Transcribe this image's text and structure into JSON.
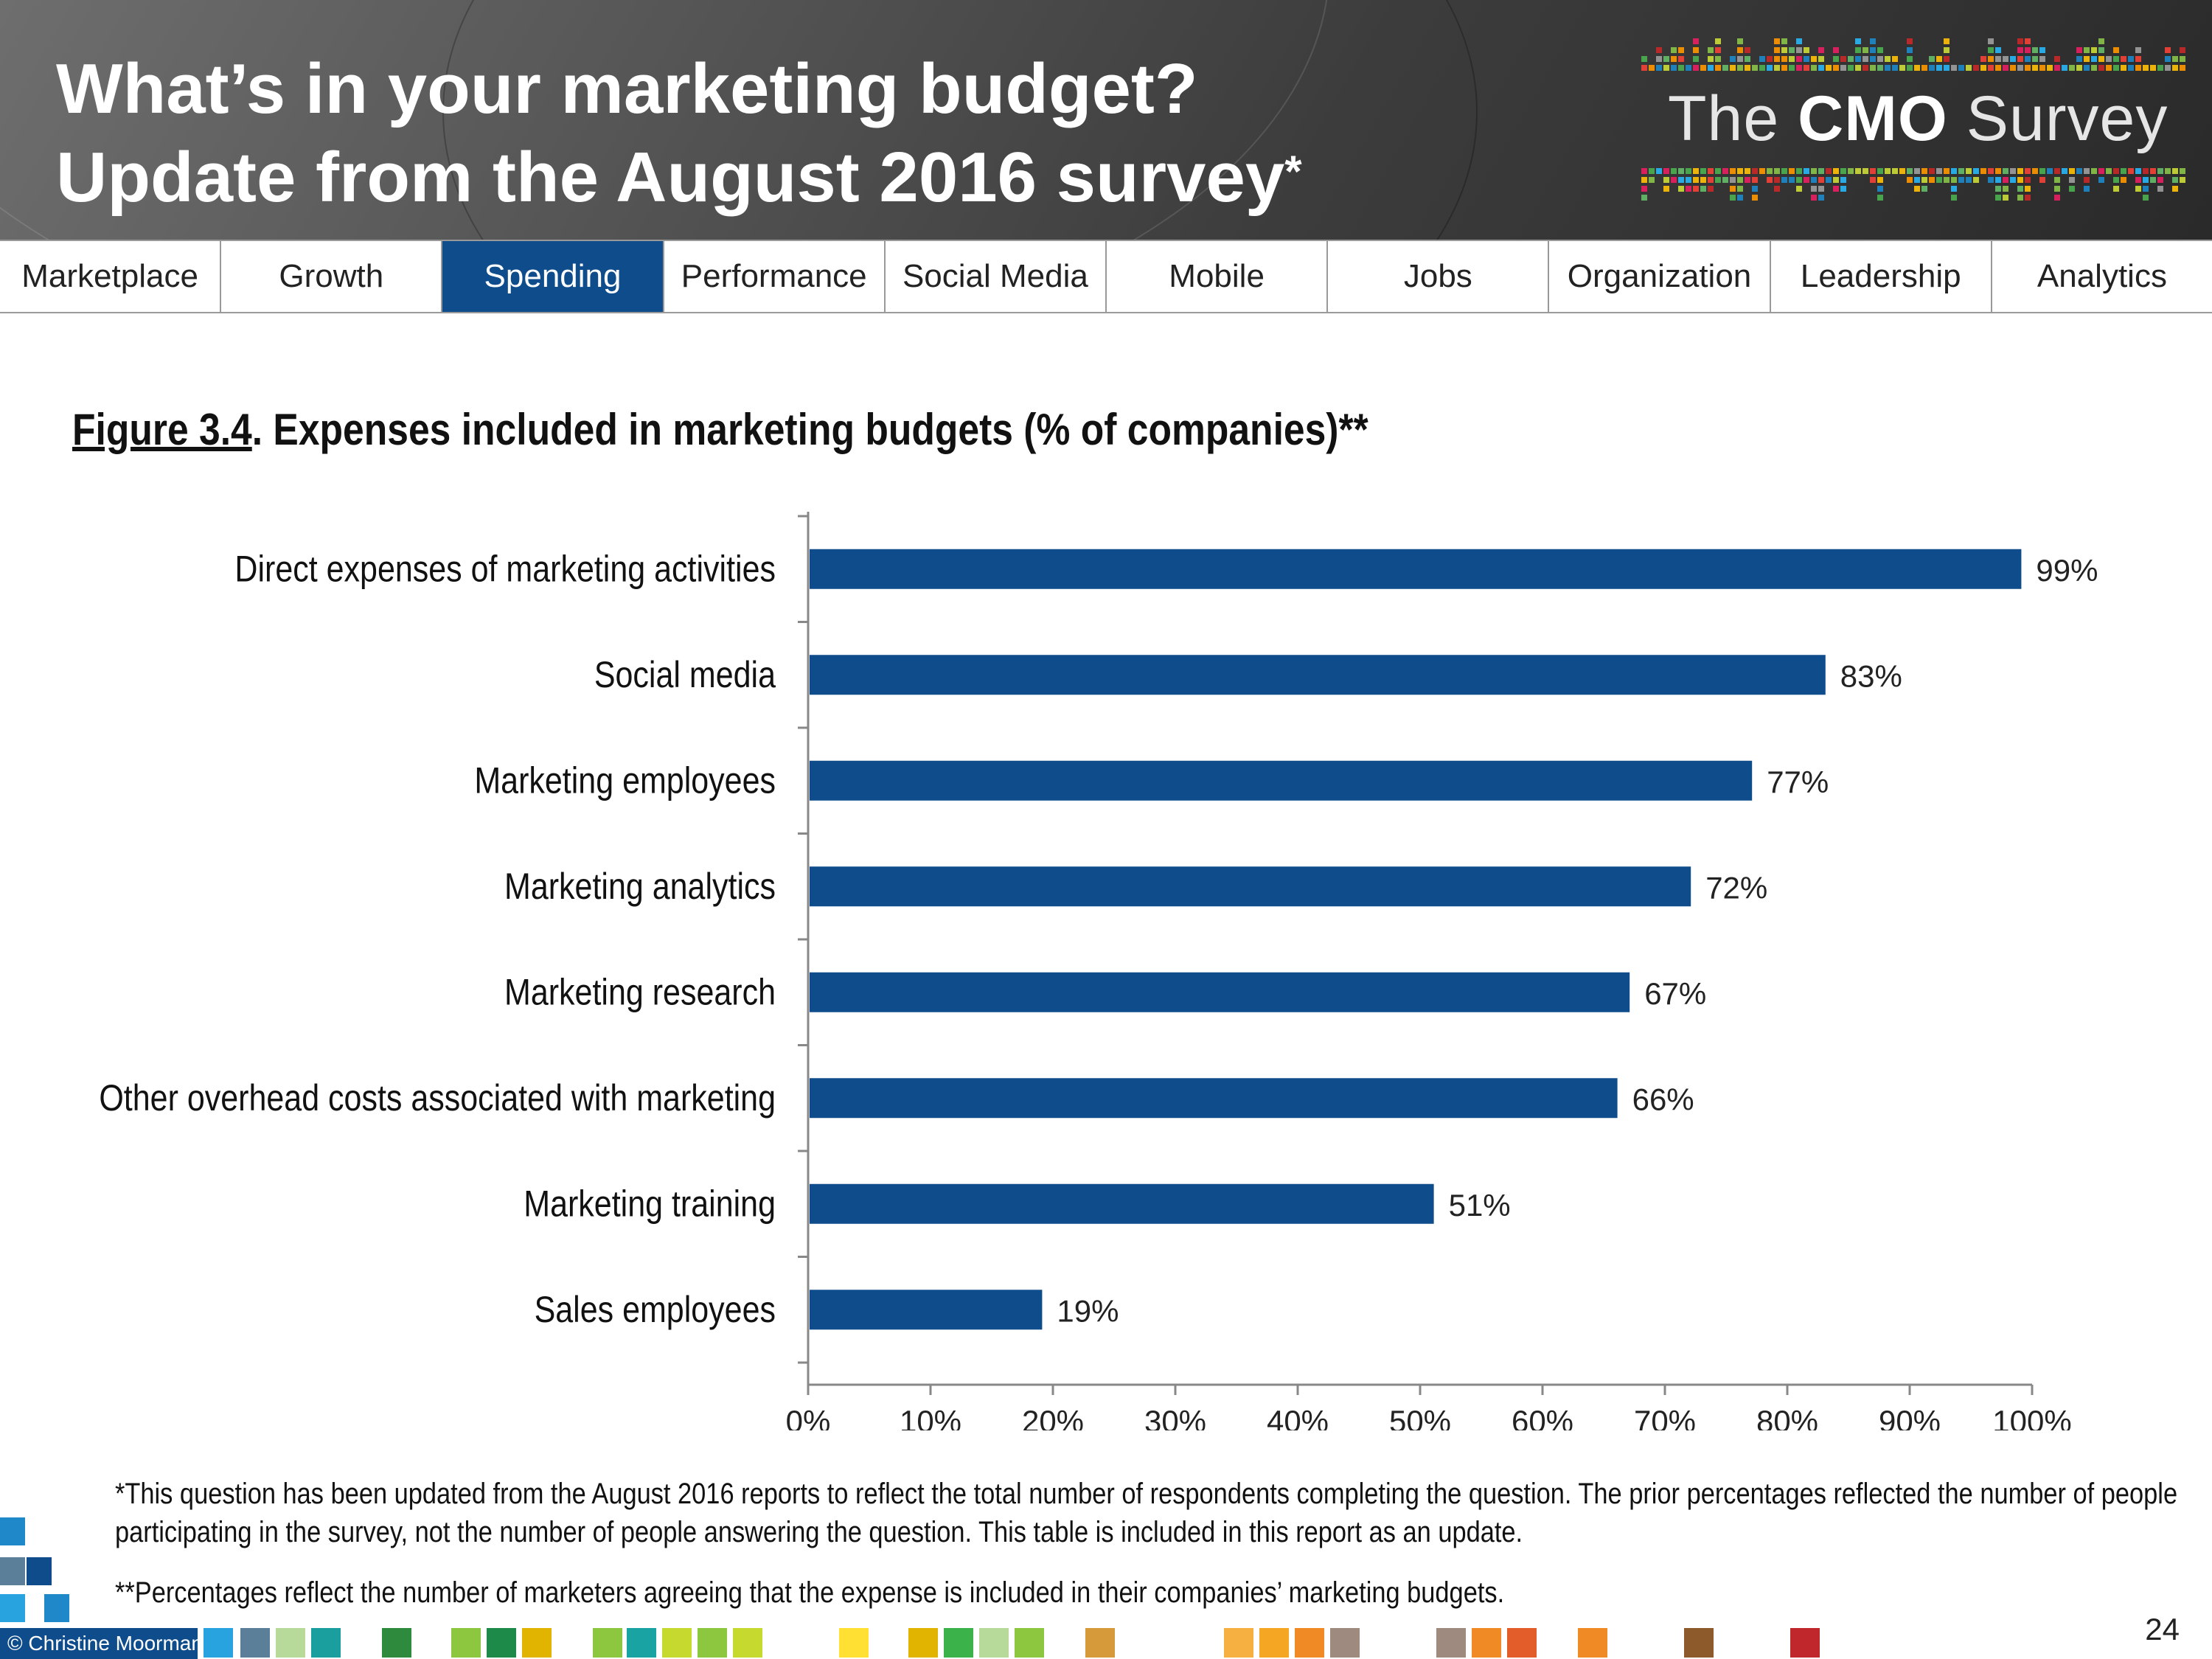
{
  "header": {
    "title_line1": "What’s in your marketing budget?",
    "title_line2": "Update from the August 2016 survey",
    "title_mark": "*",
    "logo_prefix": "The",
    "logo_bold": "CMO",
    "logo_suffix": "Survey"
  },
  "nav": {
    "tabs": [
      "Marketplace",
      "Growth",
      "Spending",
      "Performance",
      "Social Media",
      "Mobile",
      "Jobs",
      "Organization",
      "Leadership",
      "Analytics"
    ],
    "active": "Spending"
  },
  "figure": {
    "number": "Figure 3.4",
    "title": ".   Expenses included in marketing budgets (% of companies)**"
  },
  "chart_data": {
    "type": "bar",
    "orientation": "horizontal",
    "categories": [
      "Direct expenses of marketing activities",
      "Social media",
      "Marketing employees",
      "Marketing analytics",
      "Marketing research",
      "Other overhead costs associated with marketing",
      "Marketing training",
      "Sales employees"
    ],
    "values": [
      99,
      83,
      77,
      72,
      67,
      66,
      51,
      19
    ],
    "value_labels": [
      "99%",
      "83%",
      "77%",
      "72%",
      "67%",
      "66%",
      "51%",
      "19%"
    ],
    "xlim": [
      0,
      100
    ],
    "x_ticks": [
      "0%",
      "10%",
      "20%",
      "30%",
      "40%",
      "50%",
      "60%",
      "70%",
      "80%",
      "90%",
      "100%"
    ],
    "bar_color": "#0f4c8c",
    "grid": false,
    "legend": "none"
  },
  "footnotes": {
    "note1": "*This question has been updated from the August 2016 reports to reflect the total number of respondents completing the question. The prior percentages reflected the number of people participating in the survey, not the number of people answering the question. This table is included in this report as an update.",
    "note2": "**Percentages reflect the number of marketers agreeing that the expense is included in their companies’ marketing budgets."
  },
  "footer": {
    "copyright": "© Christine Moorman",
    "page_number": "24"
  }
}
